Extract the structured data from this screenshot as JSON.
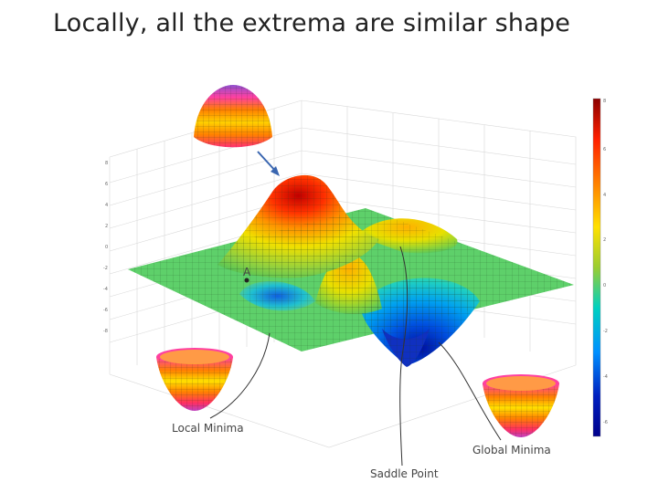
{
  "slide": {
    "title": "Locally, all the extrema are similar shape"
  },
  "figure": {
    "point_label": "A",
    "annotations": {
      "local_minima": "Local Minima",
      "saddle_point": "Saddle Point",
      "global_minima": "Global Minima"
    },
    "colormap": [
      "#8b0000",
      "#ff2000",
      "#ff8000",
      "#ffe000",
      "#9acd32",
      "#00d0c0",
      "#0090ff",
      "#0020c0",
      "#00008b"
    ]
  }
}
